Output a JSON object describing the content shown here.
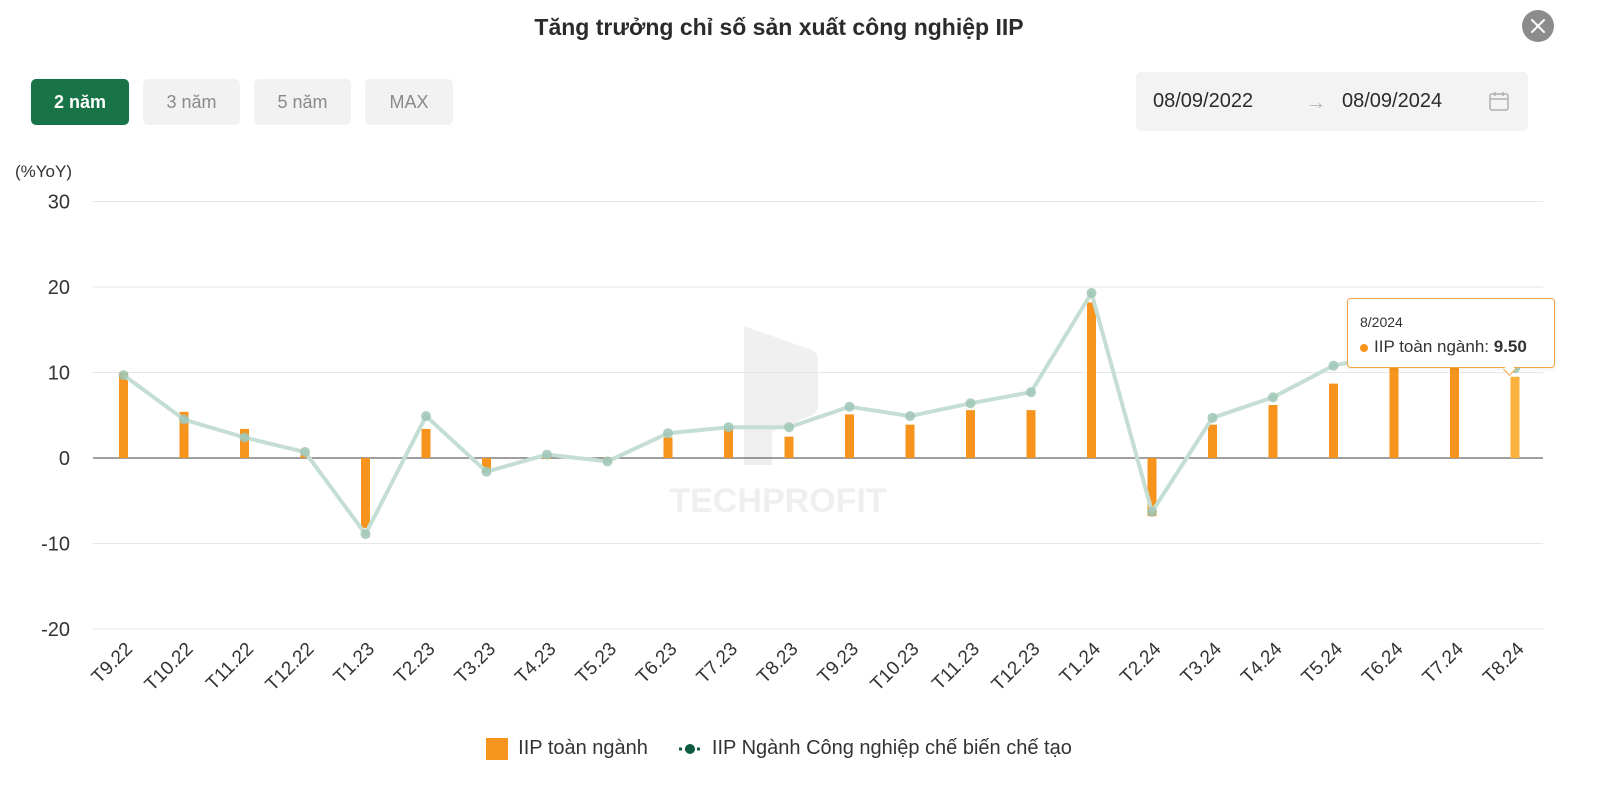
{
  "title": "Tăng trưởng chỉ số sản xuất công nghiệp IIP",
  "range_tabs": [
    {
      "label": "2 năm",
      "active": true
    },
    {
      "label": "3 năm",
      "active": false
    },
    {
      "label": "5 năm",
      "active": false
    },
    {
      "label": "MAX",
      "active": false
    }
  ],
  "date_range": {
    "start": "08/09/2022",
    "arrow": "→",
    "end": "08/09/2024"
  },
  "icons": {
    "close": "close-icon",
    "calendar": "calendar-icon",
    "watermark": "techprofit-logo"
  },
  "watermark": "TECHPROFIT",
  "tooltip": {
    "date": "8/2024",
    "series": "IIP toàn ngành",
    "value": "9.50"
  },
  "colors": {
    "bar": "#f7941d",
    "line": "#c5ded3",
    "marker": "#9fc5b5",
    "legend_line": "#0e5c40",
    "active_tab": "#187346",
    "tooltip_border": "#f7a543"
  },
  "chart_data": {
    "type": "bar+line",
    "ylabel": "(%YoY)",
    "ylim": [
      -20,
      30
    ],
    "yticks": [
      30,
      20,
      10,
      0,
      -10,
      -20
    ],
    "categories": [
      "T9.22",
      "T10.22",
      "T11.22",
      "T12.22",
      "T1.23",
      "T2.23",
      "T3.23",
      "T4.23",
      "T5.23",
      "T6.23",
      "T7.23",
      "T8.23",
      "T9.23",
      "T10.23",
      "T11.23",
      "T12.23",
      "T1.24",
      "T2.24",
      "T3.24",
      "T4.24",
      "T5.24",
      "T6.24",
      "T7.24",
      "T8.24"
    ],
    "series": [
      {
        "name": "IIP toàn ngành",
        "type": "bar",
        "values": [
          10.0,
          5.4,
          3.4,
          0.4,
          -8.2,
          3.4,
          -1.7,
          0.0,
          -0.2,
          2.4,
          3.4,
          2.5,
          5.1,
          3.9,
          5.6,
          5.6,
          18.2,
          -6.8,
          3.9,
          6.2,
          8.7,
          10.9,
          11.2,
          9.5
        ]
      },
      {
        "name": "IIP Ngành Công nghiệp chế biến chế tạo",
        "type": "line",
        "values": [
          9.7,
          4.5,
          2.4,
          0.7,
          -8.9,
          4.9,
          -1.6,
          0.4,
          -0.4,
          2.9,
          3.6,
          3.6,
          6.0,
          4.9,
          6.4,
          7.7,
          19.3,
          -6.3,
          4.7,
          7.1,
          10.8,
          12.3,
          12.4,
          10.5
        ]
      }
    ],
    "legend": [
      "IIP toàn ngành",
      "IIP Ngành Công nghiệp chế biến chế tạo"
    ],
    "legend_position": "bottom",
    "grid": true
  }
}
